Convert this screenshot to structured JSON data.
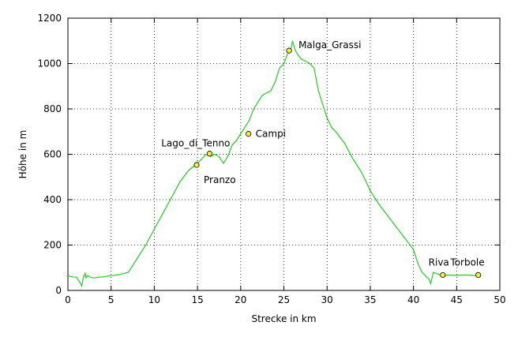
{
  "chart_data": {
    "type": "line",
    "xlabel": "Strecke in km",
    "ylabel": "Höhe in m",
    "xlim": [
      0,
      50
    ],
    "ylim": [
      0,
      1200
    ],
    "xticks": [
      0,
      5,
      10,
      15,
      20,
      25,
      30,
      35,
      40,
      45,
      50
    ],
    "yticks": [
      0,
      200,
      400,
      600,
      800,
      1000,
      1200
    ],
    "grid": true,
    "line_color": "#22cc22",
    "marker_color": "#ffee33",
    "series": [
      {
        "x": [
          0,
          0.5,
          1.0,
          1.4,
          1.6,
          1.8,
          2.0,
          2.1,
          2.3,
          2.5,
          3,
          4,
          5,
          6,
          7,
          8,
          9,
          10,
          11,
          12,
          13,
          14,
          15,
          15.5,
          16,
          16.5,
          17,
          17.5,
          18,
          18.5,
          19,
          19.5,
          20,
          20.5,
          21,
          21.5,
          22,
          22.5,
          23,
          23.5,
          24,
          24.5,
          25,
          25.5,
          25.8,
          26,
          26.3,
          26.6,
          27,
          27.5,
          28,
          28.5,
          29,
          29.5,
          30,
          30.5,
          31,
          32,
          33,
          34,
          35,
          36,
          37,
          38,
          39,
          40,
          40.5,
          41,
          41.5,
          41.8,
          42,
          42.3,
          43,
          43.5,
          44,
          45,
          46,
          47,
          47.5
        ],
        "y": [
          65,
          60,
          58,
          35,
          20,
          60,
          75,
          55,
          65,
          60,
          55,
          60,
          65,
          70,
          80,
          140,
          200,
          270,
          340,
          410,
          480,
          530,
          560,
          580,
          600,
          590,
          600,
          590,
          560,
          590,
          640,
          660,
          690,
          720,
          750,
          800,
          830,
          860,
          870,
          880,
          920,
          980,
          1000,
          1050,
          1060,
          1100,
          1060,
          1040,
          1020,
          1010,
          1000,
          980,
          880,
          820,
          760,
          720,
          700,
          650,
          580,
          520,
          440,
          380,
          330,
          280,
          230,
          180,
          120,
          80,
          60,
          50,
          30,
          80,
          70,
          65,
          68,
          66,
          68,
          66,
          65
        ],
        "points": [
          {
            "x": 0,
            "y": 65
          },
          {
            "x": 0.5,
            "y": 60
          },
          {
            "x": 1.0,
            "y": 58
          },
          {
            "x": 1.4,
            "y": 35
          },
          {
            "x": 1.6,
            "y": 20
          },
          {
            "x": 1.8,
            "y": 60
          },
          {
            "x": 2.0,
            "y": 75
          },
          {
            "x": 2.1,
            "y": 55
          },
          {
            "x": 2.3,
            "y": 65
          },
          {
            "x": 2.5,
            "y": 60
          },
          {
            "x": 3,
            "y": 55
          },
          {
            "x": 4,
            "y": 60
          },
          {
            "x": 5,
            "y": 65
          },
          {
            "x": 6,
            "y": 70
          },
          {
            "x": 7,
            "y": 80
          },
          {
            "x": 8,
            "y": 140
          },
          {
            "x": 9,
            "y": 200
          },
          {
            "x": 10,
            "y": 270
          },
          {
            "x": 11,
            "y": 340
          },
          {
            "x": 12,
            "y": 410
          },
          {
            "x": 13,
            "y": 480
          },
          {
            "x": 14,
            "y": 530
          },
          {
            "x": 15,
            "y": 560
          },
          {
            "x": 15.5,
            "y": 580
          },
          {
            "x": 16,
            "y": 600
          },
          {
            "x": 16.5,
            "y": 590
          },
          {
            "x": 17,
            "y": 600
          },
          {
            "x": 17.5,
            "y": 590
          },
          {
            "x": 18,
            "y": 560
          },
          {
            "x": 18.5,
            "y": 590
          },
          {
            "x": 19,
            "y": 640
          },
          {
            "x": 19.5,
            "y": 660
          },
          {
            "x": 20,
            "y": 690
          },
          {
            "x": 20.5,
            "y": 720
          },
          {
            "x": 21,
            "y": 750
          },
          {
            "x": 21.5,
            "y": 800
          },
          {
            "x": 22,
            "y": 830
          },
          {
            "x": 22.5,
            "y": 860
          },
          {
            "x": 23,
            "y": 870
          },
          {
            "x": 23.5,
            "y": 880
          },
          {
            "x": 24,
            "y": 920
          },
          {
            "x": 24.5,
            "y": 980
          },
          {
            "x": 25,
            "y": 1000
          },
          {
            "x": 25.5,
            "y": 1050
          },
          {
            "x": 25.8,
            "y": 1060
          },
          {
            "x": 26,
            "y": 1100
          },
          {
            "x": 26.3,
            "y": 1060
          },
          {
            "x": 26.6,
            "y": 1040
          },
          {
            "x": 27,
            "y": 1020
          },
          {
            "x": 27.5,
            "y": 1010
          },
          {
            "x": 28,
            "y": 1000
          },
          {
            "x": 28.5,
            "y": 980
          },
          {
            "x": 29,
            "y": 880
          },
          {
            "x": 29.5,
            "y": 820
          },
          {
            "x": 30,
            "y": 760
          },
          {
            "x": 30.5,
            "y": 720
          },
          {
            "x": 31,
            "y": 700
          },
          {
            "x": 32,
            "y": 650
          },
          {
            "x": 33,
            "y": 580
          },
          {
            "x": 34,
            "y": 520
          },
          {
            "x": 35,
            "y": 440
          },
          {
            "x": 36,
            "y": 380
          },
          {
            "x": 37,
            "y": 330
          },
          {
            "x": 38,
            "y": 280
          },
          {
            "x": 39,
            "y": 230
          },
          {
            "x": 40,
            "y": 180
          },
          {
            "x": 40.5,
            "y": 120
          },
          {
            "x": 41,
            "y": 80
          },
          {
            "x": 41.5,
            "y": 60
          },
          {
            "x": 41.8,
            "y": 50
          },
          {
            "x": 42,
            "y": 30
          },
          {
            "x": 42.3,
            "y": 80
          },
          {
            "x": 43,
            "y": 70
          },
          {
            "x": 43.5,
            "y": 65
          },
          {
            "x": 44,
            "y": 68
          },
          {
            "x": 45,
            "y": 66
          },
          {
            "x": 46,
            "y": 68
          },
          {
            "x": 47,
            "y": 66
          },
          {
            "x": 47.5,
            "y": 65
          }
        ]
      }
    ],
    "waypoints": [
      {
        "name": "Pranzo",
        "x": 14.9,
        "y": 553,
        "label_side": "below-right"
      },
      {
        "name": "Lago_di_Tenno",
        "x": 16.4,
        "y": 603,
        "label_side": "above-left"
      },
      {
        "name": "Campi",
        "x": 20.9,
        "y": 690,
        "label_side": "right"
      },
      {
        "name": "Malga_Grassi",
        "x": 25.6,
        "y": 1057,
        "label_side": "right"
      },
      {
        "name": "Riva",
        "x": 43.4,
        "y": 68,
        "label_side": "above-left"
      },
      {
        "name": "Torbole",
        "x": 47.5,
        "y": 68,
        "label_side": "above-left"
      }
    ]
  }
}
